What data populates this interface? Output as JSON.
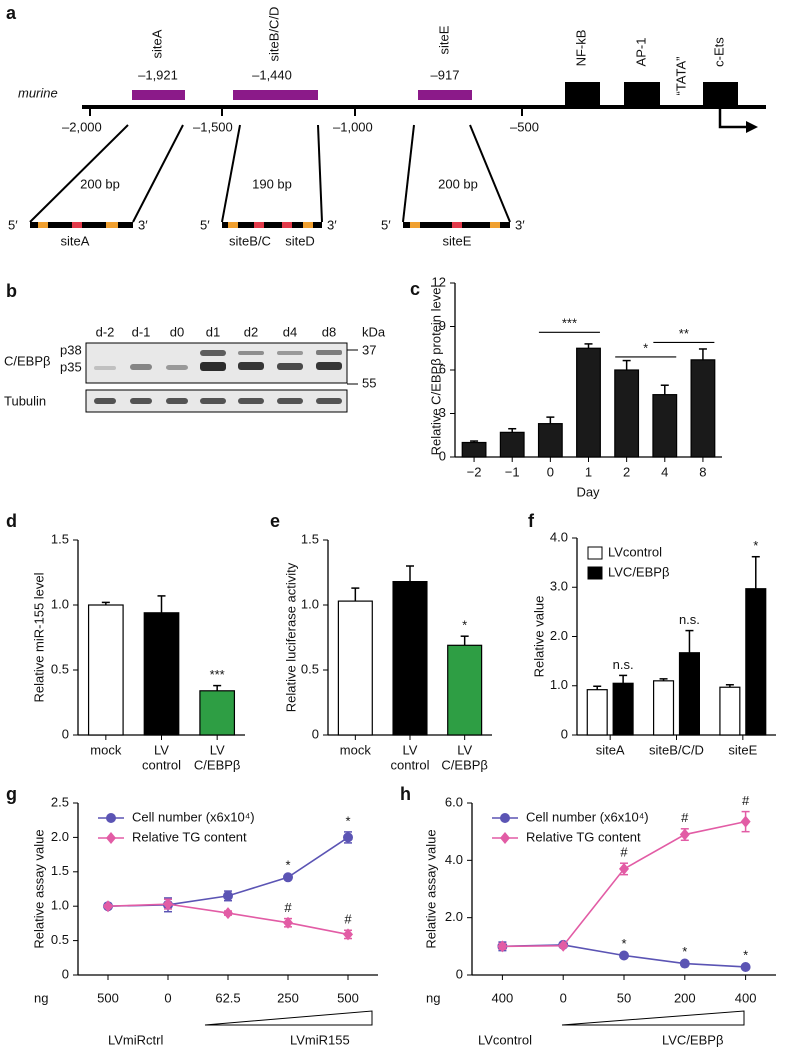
{
  "diagram": {
    "label": "a",
    "species": "murine",
    "sites": [
      {
        "name": "siteA",
        "position": "–1,921"
      },
      {
        "name": "siteB/C/D",
        "position": "–1,440"
      },
      {
        "name": "siteE",
        "position": "–917"
      }
    ],
    "elements": [
      "NF-kB",
      "AP-1",
      "“TATA”",
      "c-Ets"
    ],
    "axis_labels": [
      "–2,000",
      "–1,500",
      "–1,000",
      "–500"
    ],
    "five_prime": "5′",
    "three_prime": "3′",
    "fragments": [
      {
        "size": "200 bp",
        "labels": [
          "siteA"
        ]
      },
      {
        "size": "190 bp",
        "labels": [
          "siteB/C",
          "siteD"
        ]
      },
      {
        "size": "200 bp",
        "labels": [
          "siteE"
        ]
      }
    ]
  },
  "blot": {
    "label": "b",
    "lanes": [
      "d-2",
      "d-1",
      "d0",
      "d1",
      "d2",
      "d4",
      "d8"
    ],
    "unit": "kDa",
    "markers": [
      "37",
      "55"
    ],
    "protein": "C/EBPβ",
    "isoforms": [
      "p38",
      "p35"
    ],
    "control": "Tubulin"
  },
  "chart_data": [
    {
      "type": "bar",
      "label": "c",
      "ylabel": "Relative C/EBPβ protein level",
      "xlabel": "Day",
      "categories": [
        "−2",
        "−1",
        "0",
        "1",
        "2",
        "4",
        "8"
      ],
      "values": [
        1.0,
        1.7,
        2.3,
        7.5,
        6.0,
        4.3,
        6.7
      ],
      "errors": [
        0.1,
        0.25,
        0.45,
        0.3,
        0.65,
        0.65,
        0.75
      ],
      "color": "#1a1a1a",
      "ylim": [
        0,
        12
      ],
      "yticks": [
        0,
        3,
        6,
        9,
        12
      ],
      "significance": [
        "***",
        "*",
        "**"
      ]
    },
    {
      "type": "bar",
      "label": "d",
      "ylabel": "Relative miR-155 level",
      "categories": [
        [
          "mock"
        ],
        [
          "LV",
          "control"
        ],
        [
          "LV",
          "C/EBPβ"
        ]
      ],
      "values": [
        1.0,
        0.94,
        0.34
      ],
      "errors": [
        0.02,
        0.13,
        0.04
      ],
      "colors": [
        "#ffffff",
        "#000000",
        "#2e9e44"
      ],
      "annotations": [
        null,
        null,
        "***"
      ],
      "ylim": [
        0,
        1.5
      ],
      "yticks": [
        0,
        0.5,
        {
          "value": 1,
          "label": "1.0"
        },
        1.5
      ]
    },
    {
      "type": "bar",
      "label": "e",
      "ylabel": "Relative luciferase activity",
      "categories": [
        [
          "mock"
        ],
        [
          "LV",
          "control"
        ],
        [
          "LV",
          "C/EBPβ"
        ]
      ],
      "values": [
        1.03,
        1.18,
        0.69
      ],
      "errors": [
        0.1,
        0.12,
        0.07
      ],
      "colors": [
        "#ffffff",
        "#000000",
        "#2e9e44"
      ],
      "annotations": [
        null,
        null,
        "*"
      ],
      "ylim": [
        0,
        1.5
      ],
      "yticks": [
        0,
        0.5,
        {
          "value": 1,
          "label": "1.0"
        },
        1.5
      ]
    },
    {
      "type": "grouped-bar",
      "label": "f",
      "ylabel": "Relative value",
      "categories": [
        "siteA",
        "siteB/C/D",
        "siteE"
      ],
      "series": [
        {
          "name": "LVcontrol",
          "color": "#ffffff",
          "values": [
            0.92,
            1.1,
            0.97
          ],
          "errors": [
            0.07,
            0.04,
            0.05
          ],
          "annotations": [
            null,
            null,
            null
          ]
        },
        {
          "name": "LVC/EBPβ",
          "color": "#000000",
          "values": [
            1.05,
            1.67,
            2.97
          ],
          "errors": [
            0.16,
            0.45,
            0.65
          ],
          "annotations": [
            "n.s.",
            "n.s.",
            "*"
          ]
        }
      ],
      "ylim": [
        0,
        4
      ],
      "yticks": [
        0,
        {
          "value": 1,
          "label": "1.0"
        },
        {
          "value": 2,
          "label": "2.0"
        },
        {
          "value": 3,
          "label": "3.0"
        },
        {
          "value": 4,
          "label": "4.0"
        }
      ]
    },
    {
      "type": "line",
      "label": "g",
      "ylabel": "Relative assay value",
      "xunit": "ng",
      "categories": [
        "500",
        "0",
        "62.5",
        "250",
        "500"
      ],
      "series": [
        {
          "name": "Cell number (x6x10⁴)",
          "color": "#5b54b4",
          "marker": "circle",
          "values": [
            1.0,
            1.02,
            1.15,
            1.42,
            2.0
          ],
          "errors": [
            0.02,
            0.1,
            0.07,
            0.02,
            0.08
          ],
          "annotations": [
            null,
            null,
            null,
            "*",
            "*"
          ]
        },
        {
          "name": "Relative TG content",
          "color": "#e25ca5",
          "marker": "diamond",
          "values": [
            1.0,
            1.03,
            0.9,
            0.76,
            0.59
          ],
          "errors": [
            0.02,
            0.07,
            0.03,
            0.06,
            0.06
          ],
          "annotations": [
            null,
            null,
            null,
            "#",
            "#"
          ]
        }
      ],
      "treatments": [
        "LVmiRctrl",
        "LVmiR155"
      ],
      "ylim": [
        0,
        2.5
      ],
      "yticks": [
        0,
        0.5,
        {
          "value": 1,
          "label": "1.0"
        },
        1.5,
        {
          "value": 2,
          "label": "2.0"
        },
        2.5
      ]
    },
    {
      "type": "line",
      "label": "h",
      "ylabel": "Relative assay value",
      "xunit": "ng",
      "categories": [
        "400",
        "0",
        "50",
        "200",
        "400"
      ],
      "series": [
        {
          "name": "Cell number (x6x10⁴)",
          "color": "#5b54b4",
          "marker": "circle",
          "values": [
            1.0,
            1.05,
            0.68,
            0.4,
            0.28
          ],
          "errors": [
            0.15,
            0.05,
            0.04,
            0.03,
            0.03
          ],
          "annotations": [
            null,
            null,
            "*",
            "*",
            "*"
          ]
        },
        {
          "name": "Relative TG content",
          "color": "#e25ca5",
          "marker": "diamond",
          "values": [
            1.0,
            1.02,
            3.7,
            4.9,
            5.35
          ],
          "errors": [
            0.1,
            0.05,
            0.2,
            0.2,
            0.35
          ],
          "annotations": [
            null,
            null,
            "#",
            "#",
            "#"
          ]
        }
      ],
      "treatments": [
        "LVcontrol",
        "LVC/EBPβ"
      ],
      "ylim": [
        0,
        6
      ],
      "yticks": [
        0,
        {
          "value": 2,
          "label": "2.0"
        },
        {
          "value": 4,
          "label": "4.0"
        },
        {
          "value": 6,
          "label": "6.0"
        }
      ]
    }
  ]
}
